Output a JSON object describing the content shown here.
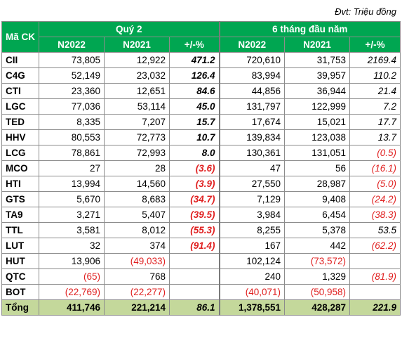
{
  "unit_note": "Đvt: Triệu đồng",
  "header": {
    "code": "Mã CK",
    "group_q2": "Quý 2",
    "group_6m": "6 tháng đầu năm",
    "sub": [
      "N2022",
      "N2021",
      "+/-%",
      "N2022",
      "N2021",
      "+/-%"
    ]
  },
  "rows": [
    {
      "code": "CII",
      "q2_2022": "73,805",
      "q2_2021": "12,922",
      "q2_pct": "471.2",
      "m6_2022": "720,610",
      "m6_2021": "31,753",
      "m6_pct": "2169.4"
    },
    {
      "code": "C4G",
      "q2_2022": "52,149",
      "q2_2021": "23,032",
      "q2_pct": "126.4",
      "m6_2022": "83,994",
      "m6_2021": "39,957",
      "m6_pct": "110.2"
    },
    {
      "code": "CTI",
      "q2_2022": "23,360",
      "q2_2021": "12,651",
      "q2_pct": "84.6",
      "m6_2022": "44,856",
      "m6_2021": "36,944",
      "m6_pct": "21.4"
    },
    {
      "code": "LGC",
      "q2_2022": "77,036",
      "q2_2021": "53,114",
      "q2_pct": "45.0",
      "m6_2022": "131,797",
      "m6_2021": "122,999",
      "m6_pct": "7.2"
    },
    {
      "code": "TED",
      "q2_2022": "8,335",
      "q2_2021": "7,207",
      "q2_pct": "15.7",
      "m6_2022": "17,674",
      "m6_2021": "15,021",
      "m6_pct": "17.7"
    },
    {
      "code": "HHV",
      "q2_2022": "80,553",
      "q2_2021": "72,773",
      "q2_pct": "10.7",
      "m6_2022": "139,834",
      "m6_2021": "123,038",
      "m6_pct": "13.7"
    },
    {
      "code": "LCG",
      "q2_2022": "78,861",
      "q2_2021": "72,993",
      "q2_pct": "8.0",
      "m6_2022": "130,361",
      "m6_2021": "131,051",
      "m6_pct": "(0.5)"
    },
    {
      "code": "MCO",
      "q2_2022": "27",
      "q2_2021": "28",
      "q2_pct": "(3.6)",
      "m6_2022": "47",
      "m6_2021": "56",
      "m6_pct": "(16.1)"
    },
    {
      "code": "HTI",
      "q2_2022": "13,994",
      "q2_2021": "14,560",
      "q2_pct": "(3.9)",
      "m6_2022": "27,550",
      "m6_2021": "28,987",
      "m6_pct": "(5.0)"
    },
    {
      "code": "GTS",
      "q2_2022": "5,670",
      "q2_2021": "8,683",
      "q2_pct": "(34.7)",
      "m6_2022": "7,129",
      "m6_2021": "9,408",
      "m6_pct": "(24.2)"
    },
    {
      "code": "TA9",
      "q2_2022": "3,271",
      "q2_2021": "5,407",
      "q2_pct": "(39.5)",
      "m6_2022": "3,984",
      "m6_2021": "6,454",
      "m6_pct": "(38.3)"
    },
    {
      "code": "TTL",
      "q2_2022": "3,581",
      "q2_2021": "8,012",
      "q2_pct": "(55.3)",
      "m6_2022": "8,255",
      "m6_2021": "5,378",
      "m6_pct": "53.5"
    },
    {
      "code": "LUT",
      "q2_2022": "32",
      "q2_2021": "374",
      "q2_pct": "(91.4)",
      "m6_2022": "167",
      "m6_2021": "442",
      "m6_pct": "(62.2)"
    },
    {
      "code": "HUT",
      "q2_2022": "13,906",
      "q2_2021": "(49,033)",
      "q2_pct": "",
      "m6_2022": "102,124",
      "m6_2021": "(73,572)",
      "m6_pct": ""
    },
    {
      "code": "QTC",
      "q2_2022": "(65)",
      "q2_2021": "768",
      "q2_pct": "",
      "m6_2022": "240",
      "m6_2021": "1,329",
      "m6_pct": "(81.9)"
    },
    {
      "code": "BOT",
      "q2_2022": "(22,769)",
      "q2_2021": "(22,277)",
      "q2_pct": "",
      "m6_2022": "(40,071)",
      "m6_2021": "(50,958)",
      "m6_pct": ""
    }
  ],
  "total": {
    "code": "Tổng",
    "q2_2022": "411,746",
    "q2_2021": "221,214",
    "q2_pct": "86.1",
    "m6_2022": "1,378,551",
    "m6_2021": "428,287",
    "m6_pct": "221.9"
  },
  "colors": {
    "header_bg": "#00a651",
    "header_text": "#ffffff",
    "total_bg": "#c4d89b",
    "negative": "#e02020"
  }
}
